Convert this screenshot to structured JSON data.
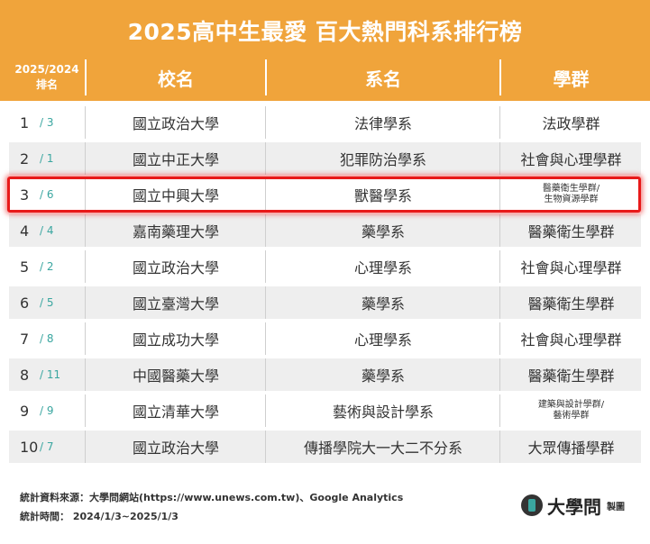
{
  "title": "2025高中生最愛 百大熱門科系排行榜",
  "headers": {
    "rank_line1": "2025/2024",
    "rank_line2": "排名",
    "school": "校名",
    "dept": "系名",
    "group": "學群"
  },
  "rows": [
    {
      "rank": "1",
      "prev": "/ 3",
      "school": "國立政治大學",
      "dept": "法律學系",
      "group": "法政學群",
      "group2": ""
    },
    {
      "rank": "2",
      "prev": "/ 1",
      "school": "國立中正大學",
      "dept": "犯罪防治學系",
      "group": "社會與心理學群",
      "group2": ""
    },
    {
      "rank": "3",
      "prev": "/ 6",
      "school": "國立中興大學",
      "dept": "獸醫學系",
      "group": "醫藥衛生學群/",
      "group2": "生物資源學群"
    },
    {
      "rank": "4",
      "prev": "/ 4",
      "school": "嘉南藥理大學",
      "dept": "藥學系",
      "group": "醫藥衛生學群",
      "group2": ""
    },
    {
      "rank": "5",
      "prev": "/ 2",
      "school": "國立政治大學",
      "dept": "心理學系",
      "group": "社會與心理學群",
      "group2": ""
    },
    {
      "rank": "6",
      "prev": "/ 5",
      "school": "國立臺灣大學",
      "dept": "藥學系",
      "group": "醫藥衛生學群",
      "group2": ""
    },
    {
      "rank": "7",
      "prev": "/ 8",
      "school": "國立成功大學",
      "dept": "心理學系",
      "group": "社會與心理學群",
      "group2": ""
    },
    {
      "rank": "8",
      "prev": "/ 11",
      "school": "中國醫藥大學",
      "dept": "藥學系",
      "group": "醫藥衛生學群",
      "group2": ""
    },
    {
      "rank": "9",
      "prev": "/ 9",
      "school": "國立清華大學",
      "dept": "藝術與設計學系",
      "group": "建築與設計學群/",
      "group2": "藝術學群"
    },
    {
      "rank": "10",
      "prev": "/ 7",
      "school": "國立政治大學",
      "dept": "傳播學院大一大二不分系",
      "group": "大眾傳播學群",
      "group2": ""
    }
  ],
  "footer": {
    "source": "統計資料來源：大學問網站(https://www.unews.com.tw)、Google Analytics",
    "period": "統計時間： 2024/1/3~2025/1/3"
  },
  "brand": {
    "name": "大學問",
    "tag": "製圖"
  },
  "colors": {
    "accent": "#f0a43b",
    "highlight": "#e81a1a",
    "prev_rank": "#3aa6a0",
    "row_alt": "#eeeeee"
  }
}
